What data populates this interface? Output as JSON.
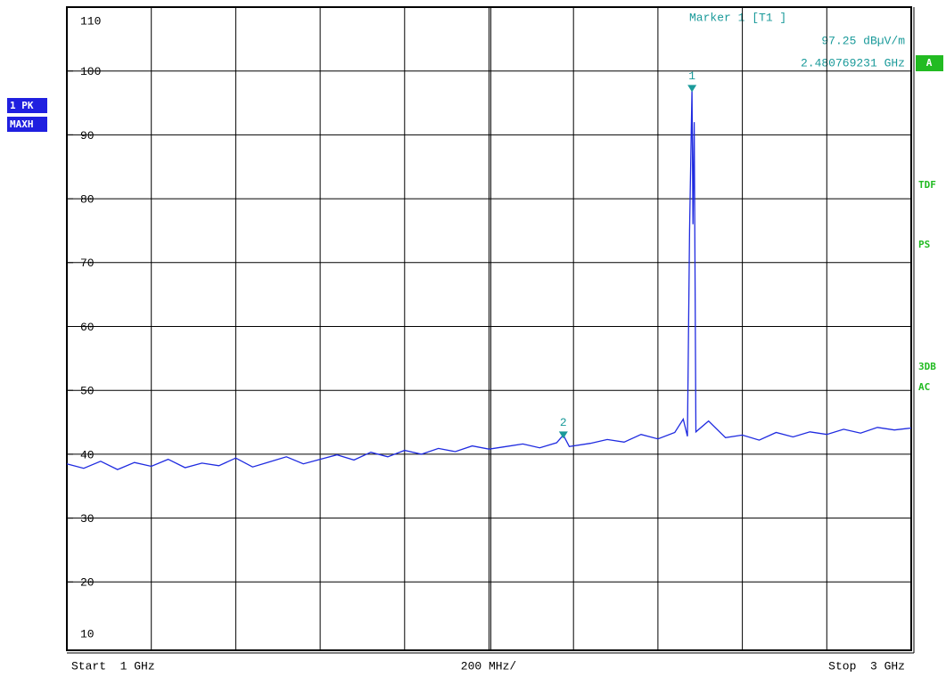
{
  "chart_data": {
    "type": "line",
    "ylim": [
      10,
      110
    ],
    "yticks": [
      110,
      100,
      90,
      80,
      70,
      60,
      50,
      40,
      30,
      20,
      10
    ],
    "xlim": [
      1,
      3
    ],
    "grid": true,
    "start_label": "Start  1 GHz",
    "span_label": "200 MHz/",
    "stop_label": "Stop  3 GHz",
    "series": [
      {
        "name": "1 PK",
        "color": "#1f2be0",
        "x": [
          1.0,
          1.04,
          1.08,
          1.12,
          1.16,
          1.2,
          1.24,
          1.28,
          1.32,
          1.36,
          1.4,
          1.44,
          1.48,
          1.52,
          1.56,
          1.6,
          1.64,
          1.68,
          1.72,
          1.76,
          1.8,
          1.84,
          1.88,
          1.92,
          1.96,
          2.0,
          2.04,
          2.08,
          2.12,
          2.16,
          2.176,
          2.19,
          2.24,
          2.28,
          2.32,
          2.36,
          2.4,
          2.44,
          2.46,
          2.47,
          2.475,
          2.480769231,
          2.483,
          2.486,
          2.49,
          2.52,
          2.56,
          2.6,
          2.64,
          2.68,
          2.72,
          2.76,
          2.8,
          2.84,
          2.88,
          2.92,
          2.96,
          3.0
        ],
        "values": [
          38.5,
          37.8,
          38.9,
          37.6,
          38.7,
          38.1,
          39.2,
          37.9,
          38.6,
          38.2,
          39.4,
          38.0,
          38.8,
          39.6,
          38.5,
          39.2,
          39.9,
          39.1,
          40.3,
          39.6,
          40.6,
          40.0,
          40.9,
          40.4,
          41.3,
          40.8,
          41.2,
          41.6,
          41.0,
          41.8,
          43.0,
          41.2,
          41.7,
          42.3,
          41.9,
          43.1,
          42.4,
          43.4,
          45.5,
          42.8,
          75,
          97.25,
          76,
          92,
          43.5,
          45.2,
          42.6,
          43.0,
          42.2,
          43.4,
          42.7,
          43.5,
          43.1,
          43.9,
          43.3,
          44.2,
          43.8,
          44.1
        ]
      }
    ],
    "markers": [
      {
        "label": "1",
        "x": 2.480769231,
        "y": 97.25,
        "color": "#1a9a9a"
      },
      {
        "label": "2",
        "x": 2.176,
        "y": 43.0,
        "color": "#1a9a9a"
      }
    ],
    "marker_readout": {
      "title": "Marker 1 [T1 ]",
      "level": "97.25 dBµV/m",
      "frequency": "2.480769231 GHz"
    },
    "left_labels": [
      "1 PK",
      "MAXH"
    ],
    "right_box": "A",
    "right_labels": [
      "TDF",
      "PS",
      "3DB",
      "AC"
    ]
  }
}
